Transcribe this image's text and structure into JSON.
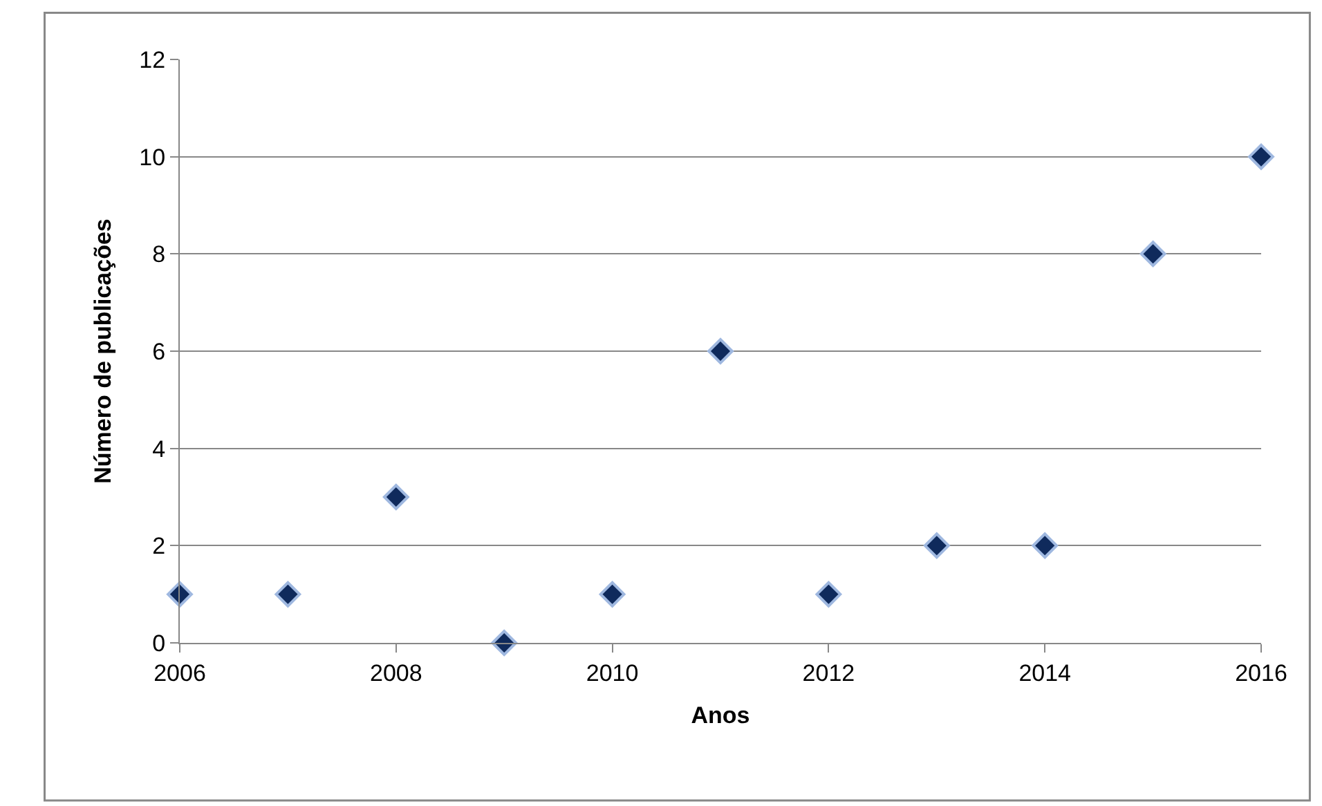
{
  "chart_data": {
    "type": "scatter",
    "xlabel": "Anos",
    "ylabel": "Número de publicações",
    "x": [
      2006,
      2007,
      2008,
      2009,
      2010,
      2011,
      2012,
      2013,
      2014,
      2015,
      2016
    ],
    "series": [
      {
        "color": "#0f2a5c",
        "values": [
          1,
          1,
          3,
          0,
          1,
          6,
          1,
          2,
          2,
          8,
          10
        ]
      }
    ],
    "xlim": [
      2006,
      2016
    ],
    "xticks": [
      2006,
      2008,
      2010,
      2012,
      2014,
      2016
    ],
    "ylim": [
      0,
      12
    ],
    "yticks": [
      0,
      2,
      4,
      6,
      8,
      10,
      12
    ],
    "grid": "y",
    "marker": "diamond",
    "legend": false
  }
}
